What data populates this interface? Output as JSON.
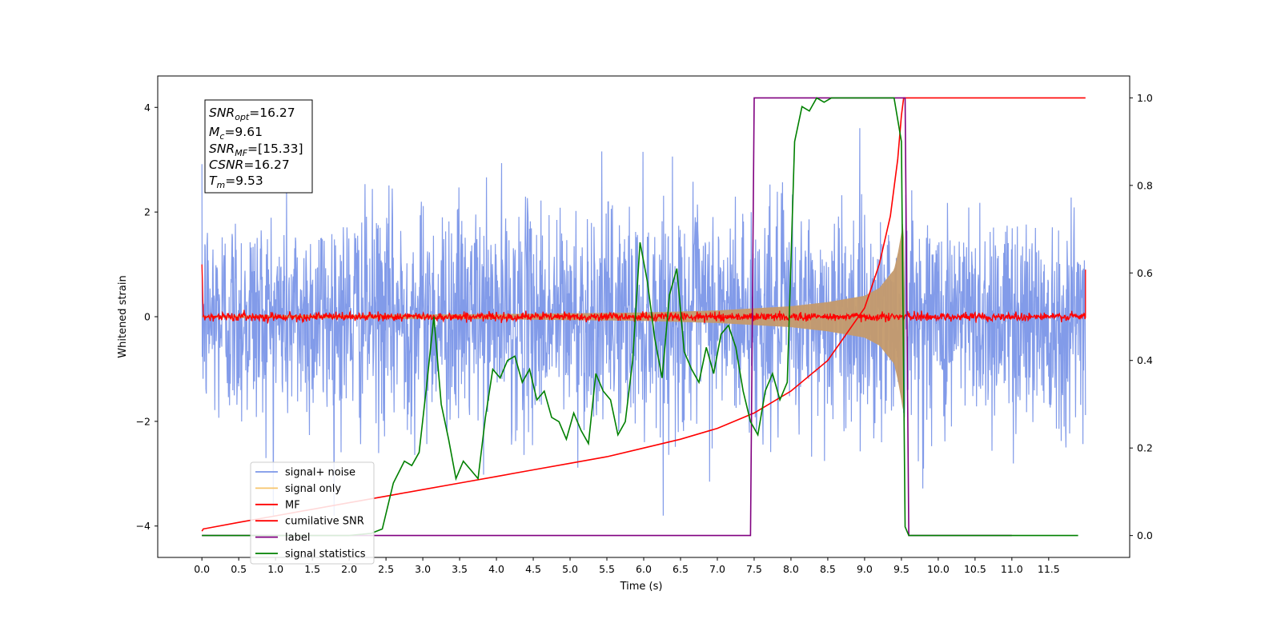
{
  "chart_data": {
    "type": "line",
    "xlabel": "Time (s)",
    "ylabel": "Whitened strain",
    "xlim": [
      -0.6,
      12.6
    ],
    "ylim": [
      -4.6,
      4.6
    ],
    "y2lim": [
      -0.05,
      1.05
    ],
    "x_ticks": [
      "0.0",
      "0.5",
      "1.0",
      "1.5",
      "2.0",
      "2.5",
      "3.0",
      "3.5",
      "4.0",
      "4.5",
      "5.0",
      "5.5",
      "6.0",
      "6.5",
      "7.0",
      "7.5",
      "8.0",
      "8.5",
      "9.0",
      "9.5",
      "10.0",
      "10.5",
      "11.0",
      "11.5"
    ],
    "y_ticks": [
      "4",
      "2",
      "0",
      "−2",
      "−4"
    ],
    "y2_ticks": [
      "1.0",
      "0.8",
      "0.6",
      "0.4",
      "0.2",
      "0.0"
    ],
    "grid": false,
    "legend_position": "lower-left",
    "annotation": {
      "snr_opt": {
        "base": "SNR",
        "sub": "opt",
        "value": "=16.27"
      },
      "mc": {
        "base": "M",
        "sub": "c",
        "value": "=9.61"
      },
      "snr_mf": {
        "base": "SNR",
        "sub": "MF",
        "value": "=[15.33]"
      },
      "csnr": {
        "base": "CSNR",
        "value": "=16.27"
      },
      "tm": {
        "base": "T",
        "sub": "m",
        "value": "=9.53"
      }
    },
    "series": [
      {
        "name": "signal+ noise",
        "color": "#7b96e8",
        "axis": "left",
        "kind": "noise",
        "amplitude_sigma": 1.0,
        "peak_abs": 3.8,
        "x_range": [
          0,
          12.0
        ]
      },
      {
        "name": "signal only",
        "color": "#f7c46b",
        "axis": "left",
        "kind": "chirp",
        "envelope_points": [
          [
            0.0,
            0.02
          ],
          [
            4.0,
            0.05
          ],
          [
            6.0,
            0.08
          ],
          [
            7.0,
            0.12
          ],
          [
            8.0,
            0.2
          ],
          [
            8.5,
            0.28
          ],
          [
            9.0,
            0.4
          ],
          [
            9.2,
            0.55
          ],
          [
            9.4,
            0.9
          ],
          [
            9.45,
            1.2
          ],
          [
            9.5,
            1.6
          ],
          [
            9.53,
            1.9
          ],
          [
            9.55,
            0.0
          ]
        ]
      },
      {
        "name": "MF",
        "color": "#ff0000",
        "axis": "left",
        "kind": "mf",
        "amplitude": 0.08,
        "edges": [
          [
            0.0,
            1.0
          ],
          [
            12.0,
            0.9
          ]
        ]
      },
      {
        "name": "cumilative SNR",
        "color": "#ff0000",
        "axis": "right",
        "points": [
          [
            0.0,
            0.01
          ],
          [
            0.02,
            0.015
          ],
          [
            0.5,
            0.03
          ],
          [
            1.0,
            0.045
          ],
          [
            1.5,
            0.06
          ],
          [
            2.0,
            0.075
          ],
          [
            2.5,
            0.09
          ],
          [
            3.0,
            0.105
          ],
          [
            3.5,
            0.12
          ],
          [
            4.0,
            0.135
          ],
          [
            4.5,
            0.15
          ],
          [
            5.0,
            0.165
          ],
          [
            5.5,
            0.18
          ],
          [
            6.0,
            0.2
          ],
          [
            6.5,
            0.22
          ],
          [
            7.0,
            0.245
          ],
          [
            7.5,
            0.28
          ],
          [
            8.0,
            0.33
          ],
          [
            8.5,
            0.4
          ],
          [
            9.0,
            0.52
          ],
          [
            9.2,
            0.62
          ],
          [
            9.35,
            0.73
          ],
          [
            9.45,
            0.86
          ],
          [
            9.5,
            0.96
          ],
          [
            9.53,
            1.0
          ],
          [
            12.0,
            1.0
          ]
        ]
      },
      {
        "name": "label",
        "color": "#800080",
        "axis": "right",
        "points": [
          [
            0.0,
            0.0
          ],
          [
            7.45,
            0.0
          ],
          [
            7.5,
            1.0
          ],
          [
            9.55,
            1.0
          ],
          [
            9.6,
            0.0
          ],
          [
            11.0,
            0.0
          ]
        ]
      },
      {
        "name": "signal statistics",
        "color": "#008000",
        "axis": "right",
        "points": [
          [
            0.0,
            0.0
          ],
          [
            1.0,
            0.0
          ],
          [
            2.0,
            0.0
          ],
          [
            2.3,
            0.005
          ],
          [
            2.45,
            0.015
          ],
          [
            2.6,
            0.12
          ],
          [
            2.75,
            0.17
          ],
          [
            2.85,
            0.16
          ],
          [
            2.95,
            0.19
          ],
          [
            3.05,
            0.34
          ],
          [
            3.15,
            0.5
          ],
          [
            3.25,
            0.3
          ],
          [
            3.35,
            0.22
          ],
          [
            3.45,
            0.13
          ],
          [
            3.55,
            0.17
          ],
          [
            3.65,
            0.15
          ],
          [
            3.75,
            0.13
          ],
          [
            3.85,
            0.27
          ],
          [
            3.95,
            0.38
          ],
          [
            4.05,
            0.36
          ],
          [
            4.15,
            0.4
          ],
          [
            4.25,
            0.41
          ],
          [
            4.35,
            0.35
          ],
          [
            4.45,
            0.38
          ],
          [
            4.55,
            0.31
          ],
          [
            4.65,
            0.33
          ],
          [
            4.75,
            0.27
          ],
          [
            4.85,
            0.26
          ],
          [
            4.95,
            0.22
          ],
          [
            5.05,
            0.28
          ],
          [
            5.15,
            0.24
          ],
          [
            5.25,
            0.21
          ],
          [
            5.35,
            0.37
          ],
          [
            5.45,
            0.33
          ],
          [
            5.55,
            0.31
          ],
          [
            5.65,
            0.23
          ],
          [
            5.75,
            0.26
          ],
          [
            5.85,
            0.4
          ],
          [
            5.95,
            0.67
          ],
          [
            6.05,
            0.58
          ],
          [
            6.15,
            0.45
          ],
          [
            6.25,
            0.36
          ],
          [
            6.35,
            0.55
          ],
          [
            6.45,
            0.61
          ],
          [
            6.55,
            0.42
          ],
          [
            6.65,
            0.38
          ],
          [
            6.75,
            0.35
          ],
          [
            6.85,
            0.43
          ],
          [
            6.95,
            0.37
          ],
          [
            7.05,
            0.46
          ],
          [
            7.15,
            0.48
          ],
          [
            7.25,
            0.43
          ],
          [
            7.35,
            0.33
          ],
          [
            7.45,
            0.26
          ],
          [
            7.55,
            0.23
          ],
          [
            7.65,
            0.33
          ],
          [
            7.75,
            0.37
          ],
          [
            7.85,
            0.31
          ],
          [
            7.95,
            0.35
          ],
          [
            8.05,
            0.9
          ],
          [
            8.15,
            0.98
          ],
          [
            8.25,
            0.97
          ],
          [
            8.35,
            1.0
          ],
          [
            8.45,
            0.99
          ],
          [
            8.55,
            1.0
          ],
          [
            8.65,
            1.0
          ],
          [
            9.0,
            1.0
          ],
          [
            9.4,
            1.0
          ],
          [
            9.5,
            0.9
          ],
          [
            9.55,
            0.02
          ],
          [
            9.6,
            0.0
          ],
          [
            10.0,
            0.0
          ],
          [
            11.0,
            0.0
          ],
          [
            11.9,
            0.0
          ]
        ]
      }
    ]
  }
}
